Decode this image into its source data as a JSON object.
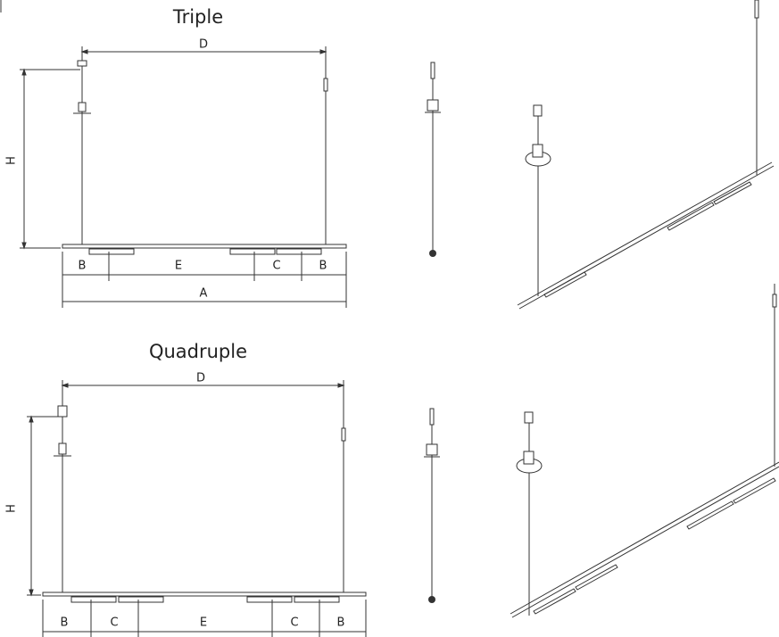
{
  "triple": {
    "title": "Triple",
    "labels": [
      "D",
      "H",
      "B",
      "E",
      "C",
      "B",
      "A"
    ]
  },
  "quadruple": {
    "title": "Quadruple",
    "labels": [
      "D",
      "H",
      "B",
      "C",
      "E",
      "C",
      "B"
    ]
  }
}
